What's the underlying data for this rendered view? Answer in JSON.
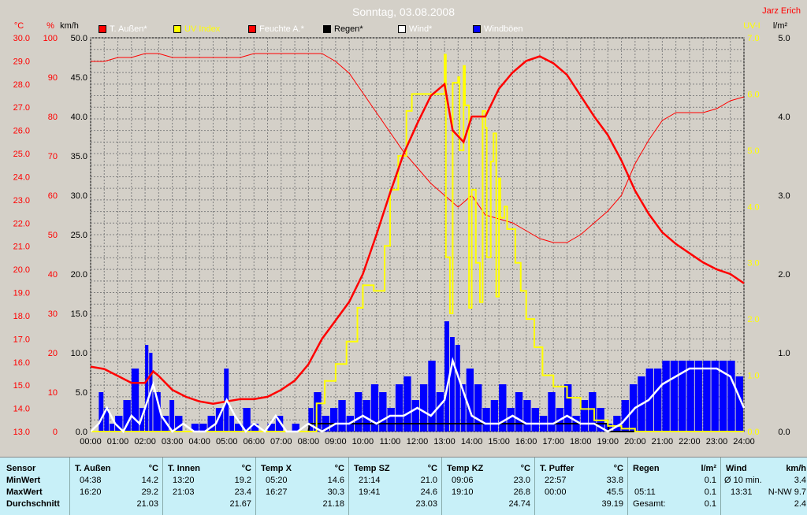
{
  "title": "Sonntag, 03.08.2008",
  "author": "Jarz Erich",
  "colors": {
    "temp": "#ff0000",
    "uv": "#ffff00",
    "hum": "#ff0000",
    "rain": "#000000",
    "wind": "#ffffff",
    "gust": "#0000ff",
    "plot_bg": "#d4d0c8",
    "axis_red": "#ff0000",
    "axis_black": "#000000"
  },
  "legend": [
    {
      "label": "T. Außen*",
      "color": "#ff0000"
    },
    {
      "label": "UV Index",
      "color": "#ffff00"
    },
    {
      "label": "Feuchte A.*",
      "color": "#ff0000"
    },
    {
      "label": "Regen*",
      "color": "#000000"
    },
    {
      "label": "Wind*",
      "color": "#ffffff"
    },
    {
      "label": "Windböen",
      "color": "#0000ff"
    }
  ],
  "axis_units": {
    "temp": "°C",
    "hum": "%",
    "wind": "km/h",
    "uv": "UV-I",
    "rain": "l/m²"
  },
  "chart_data": {
    "type": "line",
    "x_ticks": [
      "00:00",
      "01:00",
      "02:00",
      "03:00",
      "04:00",
      "05:00",
      "06:00",
      "07:00",
      "08:00",
      "09:00",
      "10:00",
      "11:00",
      "12:00",
      "13:00",
      "14:00",
      "15:00",
      "16:00",
      "17:00",
      "18:00",
      "19:00",
      "20:00",
      "21:00",
      "22:00",
      "23:00",
      "24:00"
    ],
    "xlim": [
      0,
      24
    ],
    "temp_ticks": [
      "13.0",
      "14.0",
      "15.0",
      "16.0",
      "17.0",
      "18.0",
      "19.0",
      "20.0",
      "21.0",
      "22.0",
      "23.0",
      "24.0",
      "25.0",
      "26.0",
      "27.0",
      "28.0",
      "29.0",
      "30.0"
    ],
    "temp_lim": [
      13,
      30
    ],
    "hum_ticks": [
      "0",
      "10",
      "20",
      "30",
      "40",
      "50",
      "60",
      "70",
      "80",
      "90",
      "100"
    ],
    "hum_lim": [
      0,
      100
    ],
    "wind_ticks": [
      "0.0",
      "5.0",
      "10.0",
      "15.0",
      "20.0",
      "25.0",
      "30.0",
      "35.0",
      "40.0",
      "45.0",
      "50.0"
    ],
    "wind_lim": [
      0,
      50
    ],
    "uv_ticks": [
      "0.0",
      "1.0",
      "2.0",
      "3.0",
      "4.0",
      "5.0",
      "6.0",
      "7.0"
    ],
    "uv_lim": [
      0,
      7
    ],
    "rain_ticks": [
      "0.0",
      "1.0",
      "2.0",
      "3.0",
      "4.0",
      "5.0"
    ],
    "rain_lim": [
      0,
      5
    ],
    "grid": true,
    "series": [
      {
        "name": "T. Außen*",
        "axis": "temp",
        "color": "#ff0000",
        "x": [
          0,
          0.5,
          1,
          1.5,
          2,
          2.3,
          2.5,
          3,
          3.5,
          4,
          4.5,
          5,
          5.5,
          6,
          6.5,
          7,
          7.5,
          8,
          8.5,
          9,
          9.5,
          10,
          10.5,
          11,
          11.5,
          12,
          12.5,
          13,
          13.3,
          13.7,
          14,
          14.5,
          15,
          15.5,
          16,
          16.5,
          17,
          17.5,
          18,
          18.5,
          19,
          19.5,
          20,
          20.5,
          21,
          21.5,
          22,
          22.5,
          23,
          23.5,
          24
        ],
        "y": [
          15.8,
          15.7,
          15.4,
          15.1,
          15.1,
          15.6,
          15.4,
          14.8,
          14.5,
          14.3,
          14.2,
          14.3,
          14.4,
          14.4,
          14.5,
          14.8,
          15.2,
          15.9,
          17.0,
          17.8,
          18.6,
          19.8,
          21.5,
          23.3,
          25.0,
          26.3,
          27.5,
          28.0,
          26.0,
          25.5,
          26.6,
          26.6,
          27.8,
          28.5,
          29.0,
          29.2,
          28.9,
          28.4,
          27.5,
          26.6,
          25.8,
          24.7,
          23.4,
          22.4,
          21.6,
          21.1,
          20.7,
          20.3,
          20.0,
          19.8,
          19.4
        ]
      },
      {
        "name": "Feuchte A.*",
        "axis": "hum",
        "color": "#ff0000",
        "x": [
          0,
          0.5,
          1,
          1.5,
          2,
          2.5,
          3,
          3.5,
          4,
          4.5,
          5,
          5.5,
          6,
          6.5,
          7,
          7.5,
          8,
          8.5,
          9,
          9.5,
          10,
          10.5,
          11,
          11.5,
          12,
          12.5,
          13,
          13.5,
          14,
          14.5,
          15,
          15.5,
          16,
          16.5,
          17,
          17.5,
          18,
          18.5,
          19,
          19.5,
          20,
          20.5,
          21,
          21.5,
          22,
          22.5,
          23,
          23.5,
          24
        ],
        "y": [
          94,
          94,
          95,
          95,
          96,
          96,
          95,
          95,
          95,
          95,
          95,
          95,
          96,
          96,
          96,
          96,
          96,
          96,
          94,
          91,
          86,
          81,
          76,
          71,
          67,
          63,
          60,
          57,
          60,
          55,
          54,
          53,
          51,
          49,
          48,
          48,
          50,
          53,
          56,
          60,
          68,
          74,
          79,
          81,
          81,
          81,
          82,
          84,
          85
        ]
      },
      {
        "name": "UV Index",
        "axis": "uv",
        "color": "#ffff00",
        "x": [
          0,
          8.0,
          8.3,
          8.6,
          9.0,
          9.4,
          9.8,
          10.0,
          10.4,
          10.8,
          11.0,
          11.3,
          11.6,
          11.8,
          12.0,
          12.5,
          12.9,
          13.0,
          13.05,
          13.2,
          13.3,
          13.5,
          13.55,
          13.7,
          13.75,
          13.9,
          14.0,
          14.15,
          14.3,
          14.4,
          14.5,
          14.55,
          14.7,
          14.8,
          14.9,
          15.0,
          15.05,
          15.2,
          15.3,
          15.5,
          15.6,
          15.8,
          16.0,
          16.3,
          16.6,
          17.0,
          17.5,
          18.0,
          18.5,
          19.0,
          19.5,
          20.0,
          24
        ],
        "y": [
          0,
          0,
          0.5,
          0.9,
          1.2,
          1.6,
          2.2,
          2.6,
          2.5,
          3.3,
          4.3,
          4.9,
          5.7,
          6.0,
          6.0,
          6.0,
          6.0,
          6.7,
          3.1,
          2.1,
          6.2,
          6.3,
          5.0,
          6.5,
          5.8,
          2.2,
          4.3,
          3.0,
          2.3,
          5.7,
          5.4,
          3.1,
          4.8,
          5.3,
          2.4,
          4.5,
          3.8,
          4.0,
          3.6,
          3.6,
          3.0,
          2.5,
          2.0,
          1.5,
          1.0,
          0.8,
          0.6,
          0.4,
          0.2,
          0.1,
          0.05,
          0,
          0
        ]
      },
      {
        "name": "Wind*",
        "axis": "wind",
        "color": "#ffffff",
        "x": [
          0,
          0.3,
          0.6,
          0.9,
          1.2,
          1.5,
          1.8,
          2.0,
          2.3,
          2.6,
          3.0,
          3.4,
          3.8,
          4.2,
          4.6,
          5.0,
          5.3,
          5.7,
          6.0,
          6.4,
          6.8,
          7.2,
          7.6,
          8.0,
          8.5,
          9.0,
          9.5,
          10.0,
          10.5,
          11.0,
          11.5,
          12.0,
          12.5,
          13.0,
          13.3,
          13.6,
          14.0,
          14.5,
          15.0,
          15.5,
          16.0,
          16.5,
          17.0,
          17.5,
          18.0,
          18.5,
          19.0,
          19.5,
          20.0,
          20.5,
          21.0,
          21.5,
          22.0,
          22.5,
          23.0,
          23.5,
          24.0
        ],
        "y": [
          0,
          1,
          3,
          1,
          0,
          2,
          1,
          3,
          6,
          2,
          0,
          1,
          0,
          0,
          1,
          4,
          2,
          0,
          1,
          0,
          2,
          0,
          0,
          1,
          0,
          1,
          1,
          2,
          1,
          2,
          2,
          3,
          2,
          4,
          9,
          6,
          2,
          1,
          1,
          2,
          1,
          1,
          1,
          2,
          1,
          1,
          0,
          1,
          3,
          4,
          6,
          7,
          8,
          8,
          8,
          7,
          3
        ]
      },
      {
        "name": "Regen*",
        "axis": "rain",
        "color": "#000000",
        "x": [
          0,
          8.0,
          8.05,
          19.0,
          19.05,
          24
        ],
        "y": [
          0,
          0,
          0.1,
          0.1,
          0,
          0
        ]
      }
    ],
    "gusts": {
      "name": "Windböen",
      "axis": "wind",
      "color": "#0000ff",
      "x": [
        0,
        0.3,
        0.5,
        0.7,
        0.9,
        1.2,
        1.5,
        1.8,
        2.0,
        2.15,
        2.3,
        2.6,
        2.9,
        3.1,
        3.4,
        3.7,
        4.0,
        4.3,
        4.6,
        4.9,
        5.1,
        5.3,
        5.6,
        5.9,
        6.2,
        6.5,
        6.8,
        7.1,
        7.4,
        7.7,
        8.0,
        8.2,
        8.5,
        8.8,
        9.1,
        9.4,
        9.7,
        10.0,
        10.3,
        10.6,
        10.9,
        11.2,
        11.5,
        11.8,
        12.1,
        12.4,
        12.7,
        13.0,
        13.2,
        13.4,
        13.6,
        13.8,
        14.1,
        14.4,
        14.7,
        15.0,
        15.3,
        15.6,
        15.9,
        16.2,
        16.5,
        16.8,
        17.1,
        17.4,
        17.7,
        18.0,
        18.3,
        18.6,
        18.9,
        19.2,
        19.5,
        19.8,
        20.1,
        20.4,
        20.7,
        21.0,
        21.3,
        21.6,
        21.9,
        22.2,
        22.5,
        22.8,
        23.1,
        23.4,
        23.7,
        24.0
      ],
      "y": [
        0,
        5,
        3,
        1,
        2,
        4,
        8,
        3,
        11,
        10,
        5,
        2,
        4,
        2,
        0,
        1,
        1,
        2,
        3,
        8,
        2,
        1,
        3,
        1,
        0,
        1,
        2,
        0,
        1,
        0,
        3,
        5,
        2,
        3,
        4,
        2,
        5,
        4,
        6,
        5,
        3,
        6,
        7,
        4,
        6,
        9,
        5,
        14,
        12,
        11,
        6,
        8,
        6,
        3,
        4,
        6,
        3,
        5,
        4,
        3,
        2,
        5,
        3,
        6,
        2,
        4,
        5,
        3,
        1,
        2,
        4,
        6,
        7,
        8,
        8,
        9,
        9,
        9,
        9,
        9,
        9,
        9,
        9,
        9,
        7,
        4
      ]
    }
  },
  "stats": {
    "sensor_header": "Sensor",
    "row_labels": [
      "MinWert",
      "MaxWert",
      "Durchschnitt"
    ],
    "columns": [
      {
        "name": "T. Außen",
        "unit": "°C",
        "min_time": "04:38",
        "min": "14.2",
        "max_time": "16:20",
        "max": "29.2",
        "avg": "21.03"
      },
      {
        "name": "T. Innen",
        "unit": "°C",
        "min_time": "13:20",
        "min": "19.2",
        "max_time": "21:03",
        "max": "23.4",
        "avg": "21.67"
      },
      {
        "name": "Temp X",
        "unit": "°C",
        "min_time": "05:20",
        "min": "14.6",
        "max_time": "16:27",
        "max": "30.3",
        "avg": "21.18"
      },
      {
        "name": "Temp SZ",
        "unit": "°C",
        "min_time": "21:14",
        "min": "21.0",
        "max_time": "19:41",
        "max": "24.6",
        "avg": "23.03"
      },
      {
        "name": "Temp KZ",
        "unit": "°C",
        "min_time": "09:06",
        "min": "23.0",
        "max_time": "19:10",
        "max": "26.8",
        "avg": "24.74"
      },
      {
        "name": "T. Puffer",
        "unit": "°C",
        "min_time": "22:57",
        "min": "33.8",
        "max_time": "00:00",
        "max": "45.5",
        "avg": "39.19"
      }
    ],
    "rain": {
      "name": "Regen",
      "unit": "l/m²",
      "min_time": "",
      "min": "0.1",
      "max_time": "05:11",
      "max": "0.1",
      "avg_label": "Gesamt:",
      "avg": "0.1"
    },
    "wind": {
      "name": "Wind",
      "unit": "km/h",
      "min_label": "Ø 10 min.",
      "min": "3.4",
      "max_time": "13:31",
      "max": "N-NW 9.7",
      "avg": "2.4"
    }
  }
}
